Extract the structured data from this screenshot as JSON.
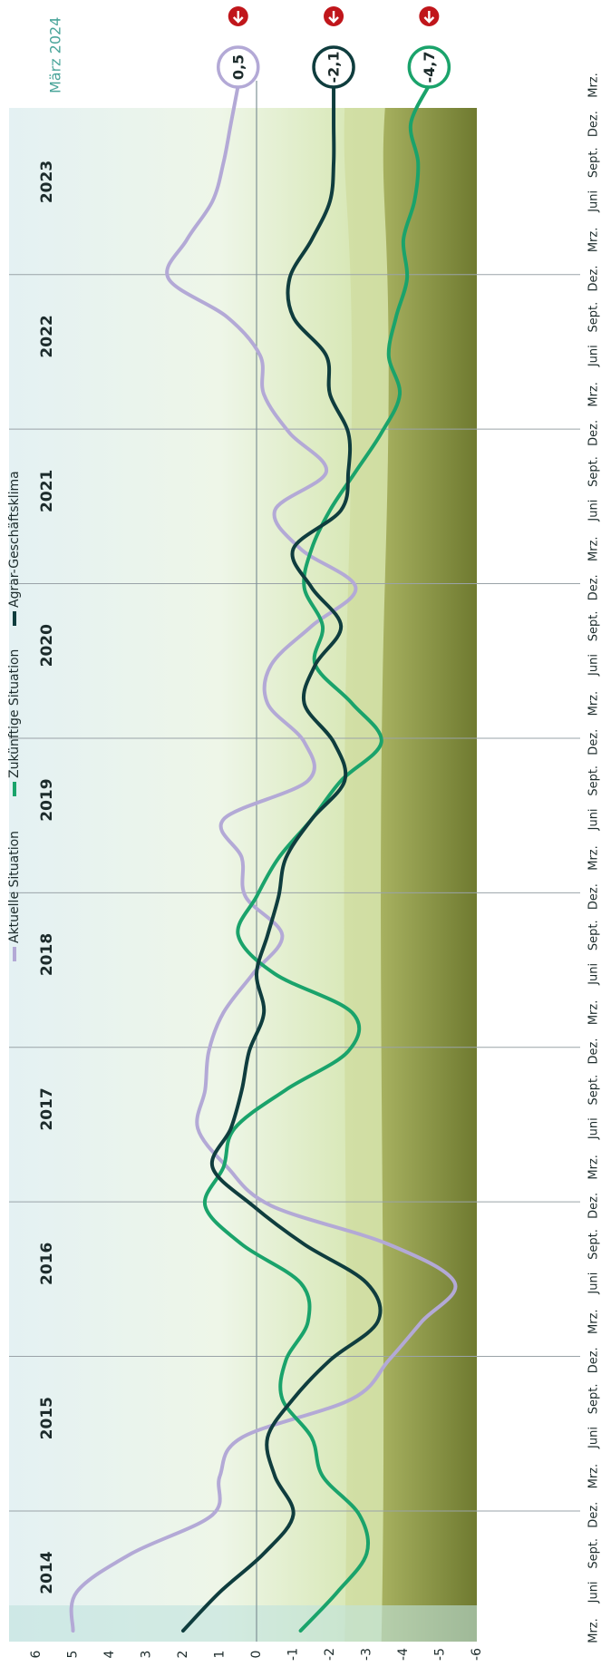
{
  "chart_data": {
    "type": "line",
    "date_label": "März 2024",
    "categories": [
      "Mrz.",
      "Juni",
      "Sept.",
      "Dez.",
      "Mrz.",
      "Juni",
      "Sept.",
      "Dez.",
      "Mrz.",
      "Juni",
      "Sept.",
      "Dez.",
      "Mrz.",
      "Juni",
      "Sept.",
      "Dez.",
      "Mrz.",
      "Juni",
      "Sept.",
      "Dez.",
      "Mrz.",
      "Juni",
      "Sept.",
      "Dez.",
      "Mrz.",
      "Juni",
      "Sept.",
      "Dez.",
      "Mrz.",
      "Juni",
      "Sept.",
      "Dez.",
      "Mrz.",
      "Juni",
      "Sept.",
      "Dez.",
      "Mrz.",
      "Juni",
      "Sept.",
      "Dez.",
      "Mrz."
    ],
    "years": [
      "2014",
      "2015",
      "2016",
      "2017",
      "2018",
      "2019",
      "2020",
      "2021",
      "2022",
      "2023"
    ],
    "series": [
      {
        "name": "Aktuelle Situation",
        "color": "#b3a9d6",
        "end_label": "0,5",
        "values": [
          5.0,
          4.9,
          3.4,
          1.2,
          1.0,
          0.4,
          -2.6,
          -3.6,
          -4.5,
          -5.4,
          -3.6,
          -0.4,
          0.8,
          1.6,
          1.4,
          1.3,
          0.9,
          0.1,
          -0.7,
          0.3,
          0.4,
          0.9,
          -1.4,
          -1.3,
          -0.3,
          -0.4,
          -1.5,
          -2.7,
          -1.2,
          -0.5,
          -1.9,
          -0.9,
          -0.2,
          -0.1,
          0.8,
          2.4,
          1.9,
          1.2,
          0.9,
          0.7,
          0.5
        ]
      },
      {
        "name": "Zukünftige Situation",
        "color": "#1aa36b",
        "end_label": "-4,7",
        "values": [
          -1.2,
          -2.2,
          -3.0,
          -2.8,
          -1.8,
          -1.5,
          -0.7,
          -0.8,
          -1.4,
          -1.2,
          0.4,
          1.4,
          0.9,
          0.6,
          -0.8,
          -2.5,
          -2.6,
          -0.5,
          0.5,
          0.0,
          -0.6,
          -1.5,
          -2.3,
          -3.4,
          -2.6,
          -1.6,
          -1.8,
          -1.3,
          -1.5,
          -2.0,
          -2.7,
          -3.4,
          -3.9,
          -3.6,
          -3.8,
          -4.1,
          -4.0,
          -4.3,
          -4.4,
          -4.2,
          -4.7
        ]
      },
      {
        "name": "Agrar-Geschäftsklima",
        "color": "#0f3d3e",
        "end_label": "-2,1",
        "values": [
          2.0,
          1.0,
          -0.2,
          -1.0,
          -0.5,
          -0.3,
          -1.0,
          -2.0,
          -3.3,
          -3.0,
          -1.3,
          0.1,
          1.2,
          0.7,
          0.4,
          0.2,
          -0.2,
          0.0,
          -0.3,
          -0.6,
          -0.8,
          -1.5,
          -2.4,
          -2.1,
          -1.3,
          -1.6,
          -2.3,
          -1.5,
          -1.0,
          -2.3,
          -2.5,
          -2.5,
          -2.0,
          -1.9,
          -1.0,
          -0.9,
          -1.5,
          -2.0,
          -2.1,
          -2.1,
          -2.1
        ]
      }
    ],
    "ylim": [
      -6,
      6
    ],
    "yticks": [
      6,
      5,
      4,
      3,
      2,
      1,
      0,
      -1,
      -2,
      -3,
      -4,
      -5,
      -6
    ],
    "reference_line": 0,
    "grid": false
  }
}
